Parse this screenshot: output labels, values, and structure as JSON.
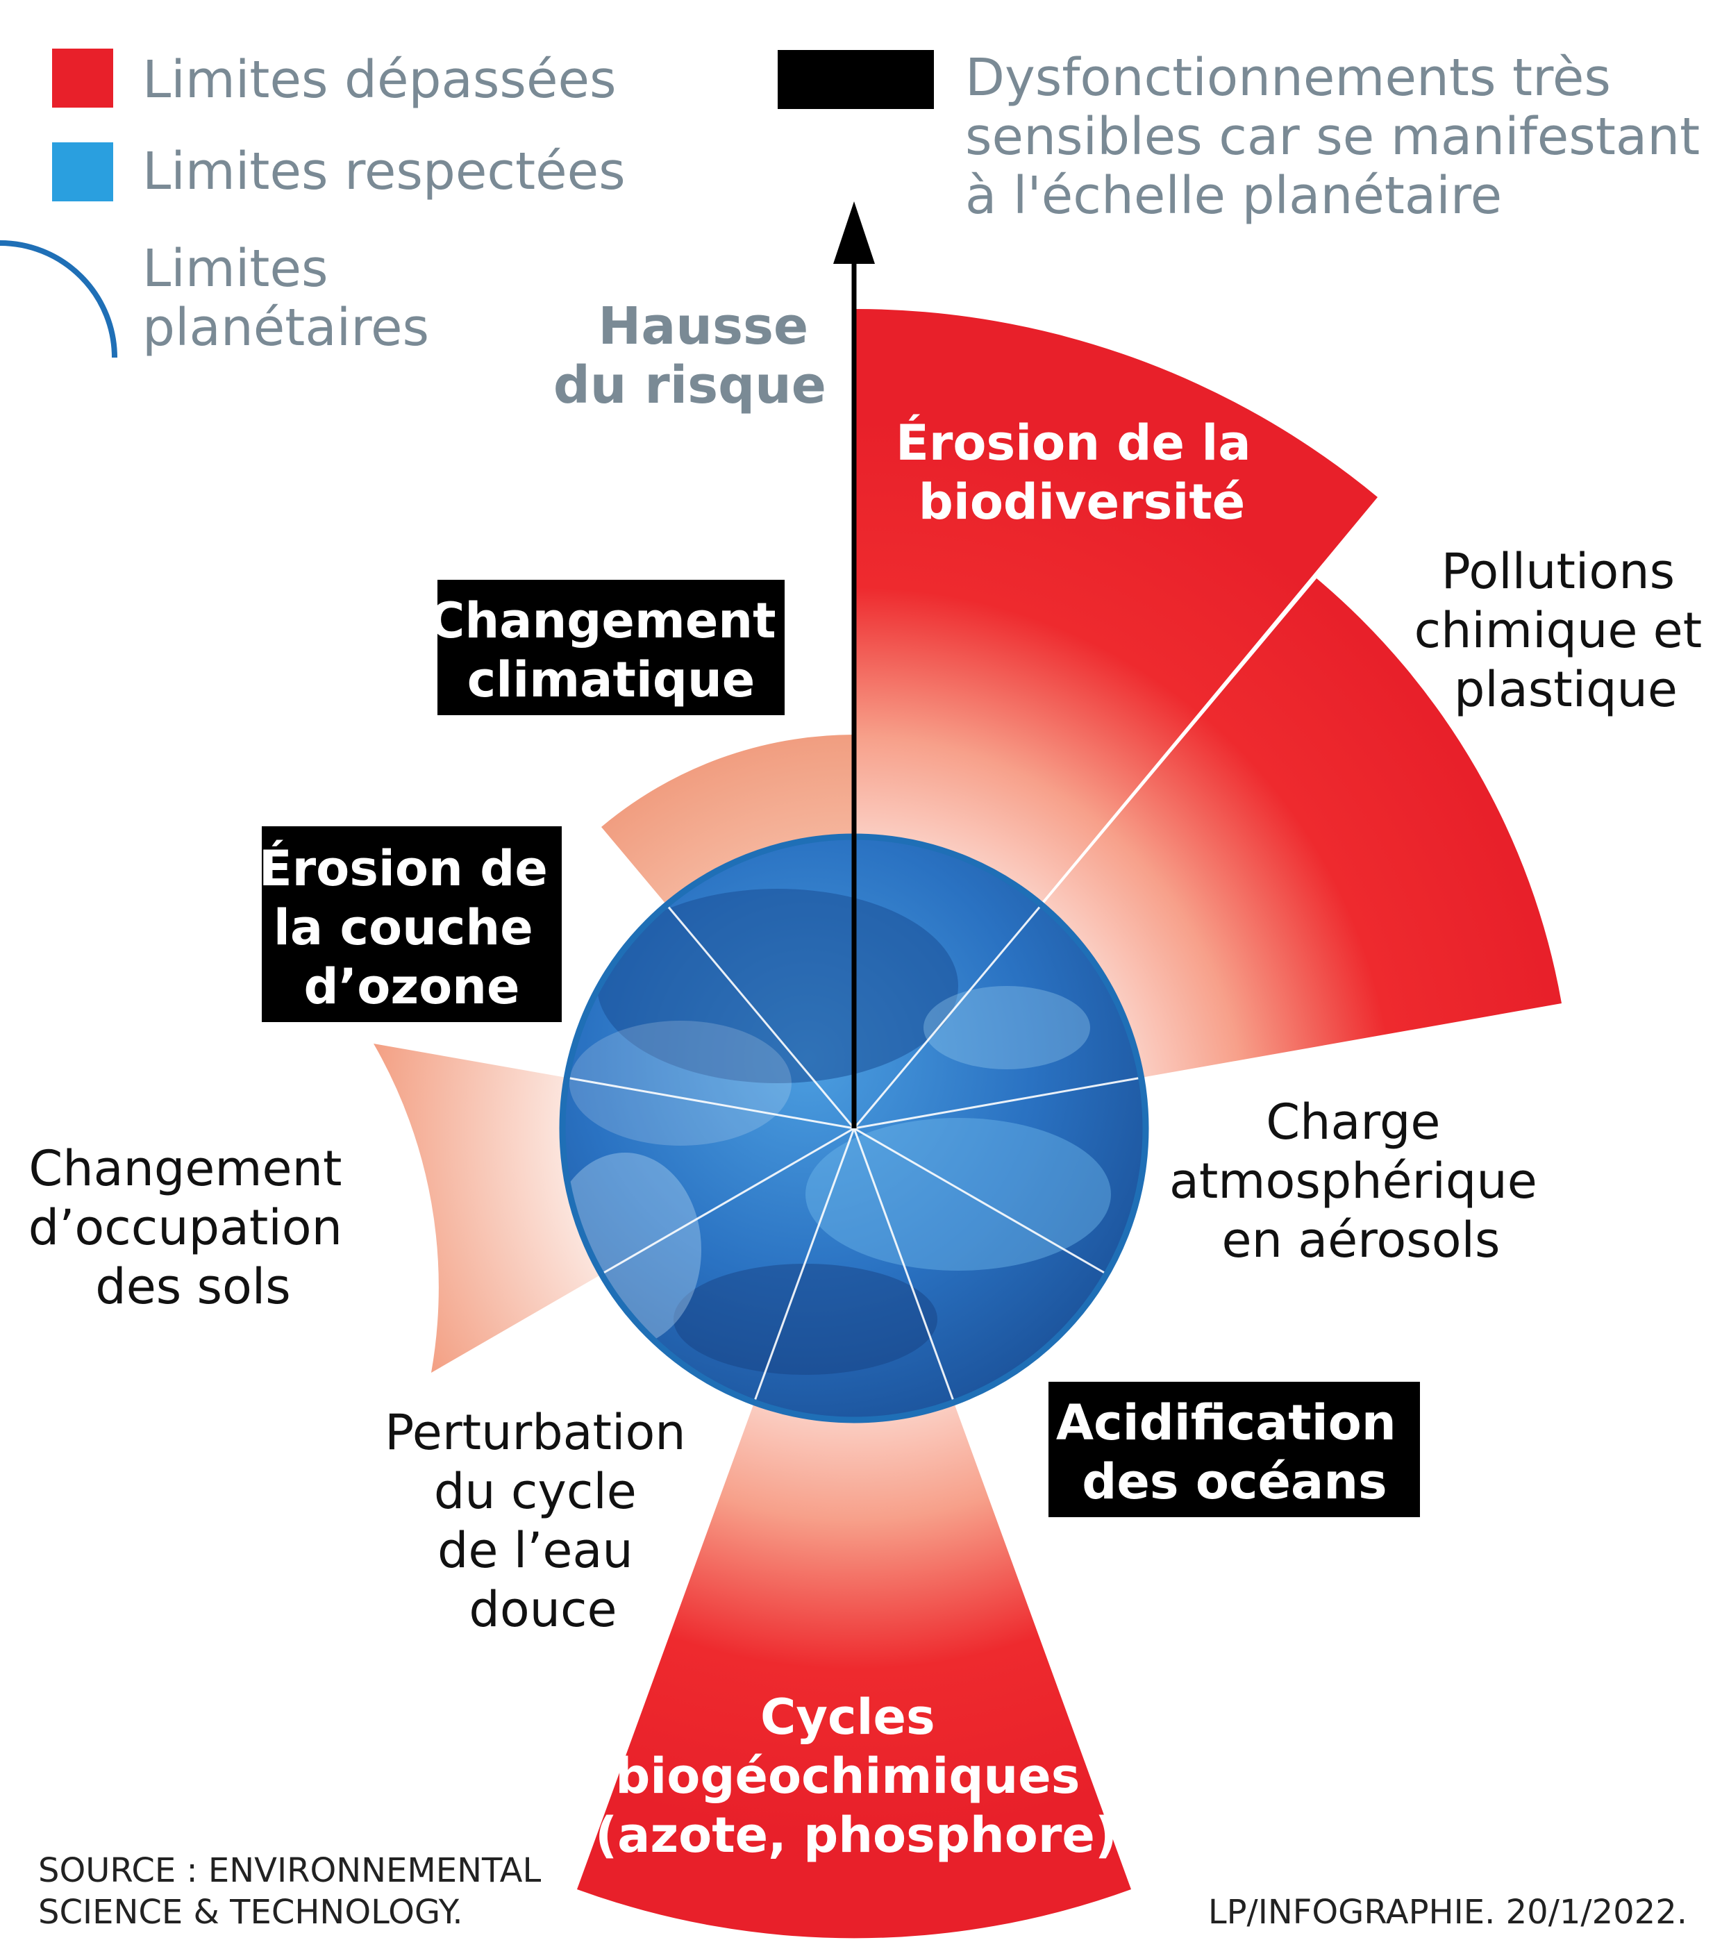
{
  "legend": {
    "exceeded": "Limites dépassées",
    "respected": "Limites respectées",
    "planetary": [
      "Limites",
      "planétaires"
    ],
    "severe": [
      "Dysfonctionnements très",
      "sensibles car se manifestant",
      "à l'échelle planétaire"
    ]
  },
  "axis": {
    "label": [
      "Hausse",
      "du risque"
    ]
  },
  "segments": {
    "biodiversity": [
      "Érosion de la",
      "biodiversité"
    ],
    "pollution": [
      "Pollutions",
      "chimique et",
      "plastique"
    ],
    "aerosols": [
      "Charge",
      "atmosphérique",
      "en aérosols"
    ],
    "ocean": [
      "Acidification",
      "des océans"
    ],
    "biogeo": [
      "Cycles",
      "biogéochimiques",
      "(azote, phosphore)"
    ],
    "freshwater": [
      "Perturbation",
      "du cycle",
      "de l’eau",
      "douce"
    ],
    "landuse": [
      "Changement",
      "d’occupation",
      "des sols"
    ],
    "ozone": [
      "Érosion de",
      "la couche",
      "d’ozone"
    ],
    "climate": [
      "Changement",
      "climatique"
    ]
  },
  "footer": {
    "source": [
      "SOURCE : ENVIRONNEMENTAL",
      "SCIENCE & TECHNOLOGY."
    ],
    "credit": "LP/INFOGRAPHIE.  20/1/2022."
  },
  "colors": {
    "exceeded": "#e8202a",
    "respected": "#2a9fdf",
    "severe": "#000000",
    "planetary_arc": "#1f6fb6",
    "text_grey": "#7a8a95"
  }
}
